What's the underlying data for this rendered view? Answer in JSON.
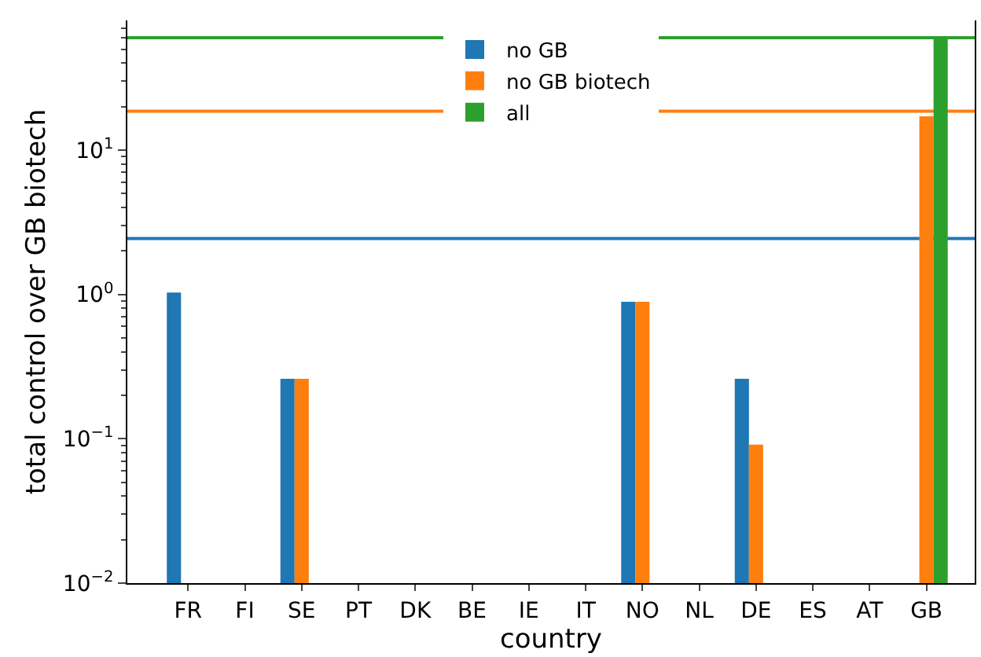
{
  "chart_data": {
    "type": "bar",
    "xlabel": "country",
    "ylabel": "total control over GB biotech",
    "categories": [
      "FR",
      "FI",
      "SE",
      "PT",
      "DK",
      "BE",
      "IE",
      "IT",
      "NO",
      "NL",
      "DE",
      "ES",
      "AT",
      "GB"
    ],
    "series": [
      {
        "name": "no GB",
        "color": "#1f77b4",
        "values": [
          1.03,
          null,
          0.26,
          null,
          null,
          null,
          null,
          null,
          0.89,
          null,
          0.26,
          null,
          null,
          null
        ]
      },
      {
        "name": "no GB biotech",
        "color": "#ff7f0e",
        "values": [
          null,
          null,
          0.26,
          null,
          null,
          null,
          null,
          null,
          0.89,
          null,
          0.091,
          null,
          null,
          17.1
        ]
      },
      {
        "name": "all",
        "color": "#2ca02c",
        "values": [
          null,
          null,
          null,
          null,
          null,
          null,
          null,
          null,
          null,
          null,
          null,
          null,
          null,
          59.7
        ]
      }
    ],
    "log": "y",
    "ylim": [
      0.01,
      79
    ],
    "yticks": [
      {
        "value": 0.01,
        "label": "10$^{−2}$"
      },
      {
        "value": 0.1,
        "label": "10$^{−1}$"
      },
      {
        "value": 1,
        "label": "10$^{0}$"
      },
      {
        "value": 10,
        "label": "10$^{1}$"
      },
      {
        "value": 0.02,
        "label": null
      },
      {
        "value": 0.03,
        "label": null
      },
      {
        "value": 0.04,
        "label": null
      },
      {
        "value": 0.05,
        "label": null
      },
      {
        "value": 0.06,
        "label": null
      },
      {
        "value": 0.07,
        "label": null
      },
      {
        "value": 0.08,
        "label": null
      },
      {
        "value": 0.09,
        "label": null
      },
      {
        "value": 0.2,
        "label": null
      },
      {
        "value": 0.3,
        "label": null
      },
      {
        "value": 0.4,
        "label": null
      },
      {
        "value": 0.5,
        "label": null
      },
      {
        "value": 0.6,
        "label": null
      },
      {
        "value": 0.7,
        "label": null
      },
      {
        "value": 0.8,
        "label": null
      },
      {
        "value": 0.9,
        "label": null
      },
      {
        "value": 2,
        "label": null
      },
      {
        "value": 3,
        "label": null
      },
      {
        "value": 4,
        "label": null
      },
      {
        "value": 5,
        "label": null
      },
      {
        "value": 6,
        "label": null
      },
      {
        "value": 7,
        "label": null
      },
      {
        "value": 8,
        "label": null
      },
      {
        "value": 9,
        "label": null
      },
      {
        "value": 20,
        "label": null
      },
      {
        "value": 30,
        "label": null
      },
      {
        "value": 40,
        "label": null
      },
      {
        "value": 50,
        "label": null
      },
      {
        "value": 60,
        "label": null
      },
      {
        "value": 70,
        "label": null
      }
    ],
    "ref_lines": [
      {
        "axis": "y",
        "value": 2.44,
        "color": "#1f77b4"
      },
      {
        "axis": "y",
        "value": 18.6,
        "color": "#ff7f0e"
      },
      {
        "axis": "y",
        "value": 60,
        "color": "#2ca02c"
      }
    ],
    "grid": false,
    "legend": "top"
  }
}
